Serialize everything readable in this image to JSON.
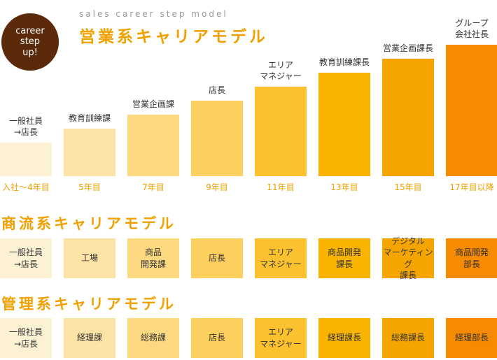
{
  "badge": "career\nstep\nup!",
  "subtitle": "sales career step model",
  "sections": [
    {
      "title": "営業系キャリアモデル",
      "steps": [
        {
          "label": "一般社員\n→店長",
          "year": "入社〜4年目"
        },
        {
          "label": "教育訓練課",
          "year": "5年目"
        },
        {
          "label": "営業企画課",
          "year": "7年目"
        },
        {
          "label": "店長",
          "year": "9年目"
        },
        {
          "label": "エリア\nマネジャー",
          "year": "11年目"
        },
        {
          "label": "教育訓練課長",
          "year": "13年目"
        },
        {
          "label": "営業企画課長",
          "year": "15年目"
        },
        {
          "label": "グループ\n会社社長",
          "year": "17年目以降"
        }
      ]
    },
    {
      "title": "商流系キャリアモデル",
      "steps": [
        {
          "label": "一般社員\n→店長"
        },
        {
          "label": "工場"
        },
        {
          "label": "商品\n開発課"
        },
        {
          "label": "店長"
        },
        {
          "label": "エリア\nマネジャー"
        },
        {
          "label": "商品開発\n課長"
        },
        {
          "label": "デジタル\nマーケティング\n課長"
        },
        {
          "label": "商品開発\n部長"
        }
      ]
    },
    {
      "title": "管理系キャリアモデル",
      "steps": [
        {
          "label": "一般社員\n→店長"
        },
        {
          "label": "経理課"
        },
        {
          "label": "総務課"
        },
        {
          "label": "店長"
        },
        {
          "label": "エリア\nマネジャー"
        },
        {
          "label": "経理課長"
        },
        {
          "label": "総務課長"
        },
        {
          "label": "経理部長"
        }
      ]
    }
  ]
}
